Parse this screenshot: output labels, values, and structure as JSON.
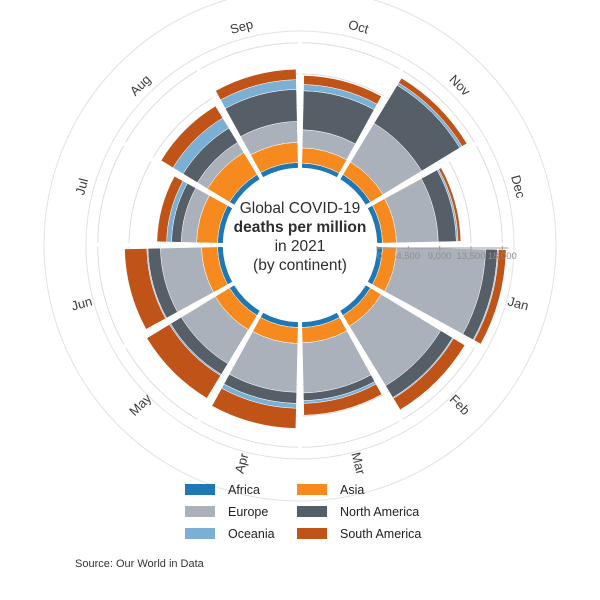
{
  "title": {
    "line1": "Global COVID-19",
    "line2": "deaths per million",
    "line3": "in 2021",
    "line4": "(by continent)"
  },
  "source": "Source: Our World in Data",
  "axis": {
    "tick_labels": [
      "0",
      "4,500",
      "9,000",
      "13,500",
      "18,000"
    ],
    "tick_values": [
      0,
      4500,
      9000,
      13500,
      18000
    ],
    "max_value": 18000
  },
  "colors": {
    "Africa": "#1f77b4",
    "Asia": "#f68a1f",
    "Europe": "#aab1ba",
    "North America": "#565e68",
    "Oceania": "#7bafd4",
    "South America": "#c05317",
    "gridline": "#dddddd",
    "outer_circle": "#e2e2e2",
    "axis_line": "#9e9e9e"
  },
  "legend": {
    "columns": [
      [
        "Africa",
        "Europe",
        "Oceania"
      ],
      [
        "Asia",
        "North America",
        "South America"
      ]
    ]
  },
  "chart_data": {
    "type": "radial-stacked-bar",
    "title": "Global COVID-19 deaths per million in 2021 (by continent)",
    "units": "deaths per million",
    "radial_axis_range": [
      0,
      18000
    ],
    "radial_ticks": [
      0,
      4500,
      9000,
      13500,
      18000
    ],
    "grid": "on",
    "categories": [
      "Jan",
      "Feb",
      "Mar",
      "Apr",
      "May",
      "Jun",
      "Jul",
      "Aug",
      "Sep",
      "Oct",
      "Nov",
      "Dec"
    ],
    "stacking_order_inner_to_outer": [
      "Africa",
      "Asia",
      "Europe",
      "North America",
      "Oceania",
      "South America"
    ],
    "series": [
      {
        "name": "Africa",
        "values": [
          800,
          800,
          800,
          800,
          800,
          800,
          800,
          800,
          800,
          700,
          800,
          800
        ]
      },
      {
        "name": "Asia",
        "values": [
          2000,
          1800,
          2200,
          2300,
          2400,
          2300,
          3000,
          3700,
          2900,
          2200,
          2100,
          2000
        ]
      },
      {
        "name": "Europe",
        "values": [
          12800,
          10000,
          7200,
          7000,
          5700,
          5900,
          2200,
          1700,
          3000,
          2600,
          6500,
          6000
        ]
      },
      {
        "name": "North America",
        "values": [
          1700,
          2000,
          1100,
          1600,
          1800,
          1800,
          1400,
          2400,
          4600,
          5600,
          6400,
          2600
        ]
      },
      {
        "name": "Oceania",
        "values": [
          150,
          150,
          400,
          700,
          200,
          150,
          700,
          1700,
          1400,
          900,
          400,
          250
        ]
      },
      {
        "name": "South America",
        "values": [
          1100,
          1900,
          1700,
          2900,
          3800,
          3200,
          1400,
          2000,
          1500,
          1300,
          800,
          400
        ]
      }
    ],
    "legend_position": "bottom"
  }
}
